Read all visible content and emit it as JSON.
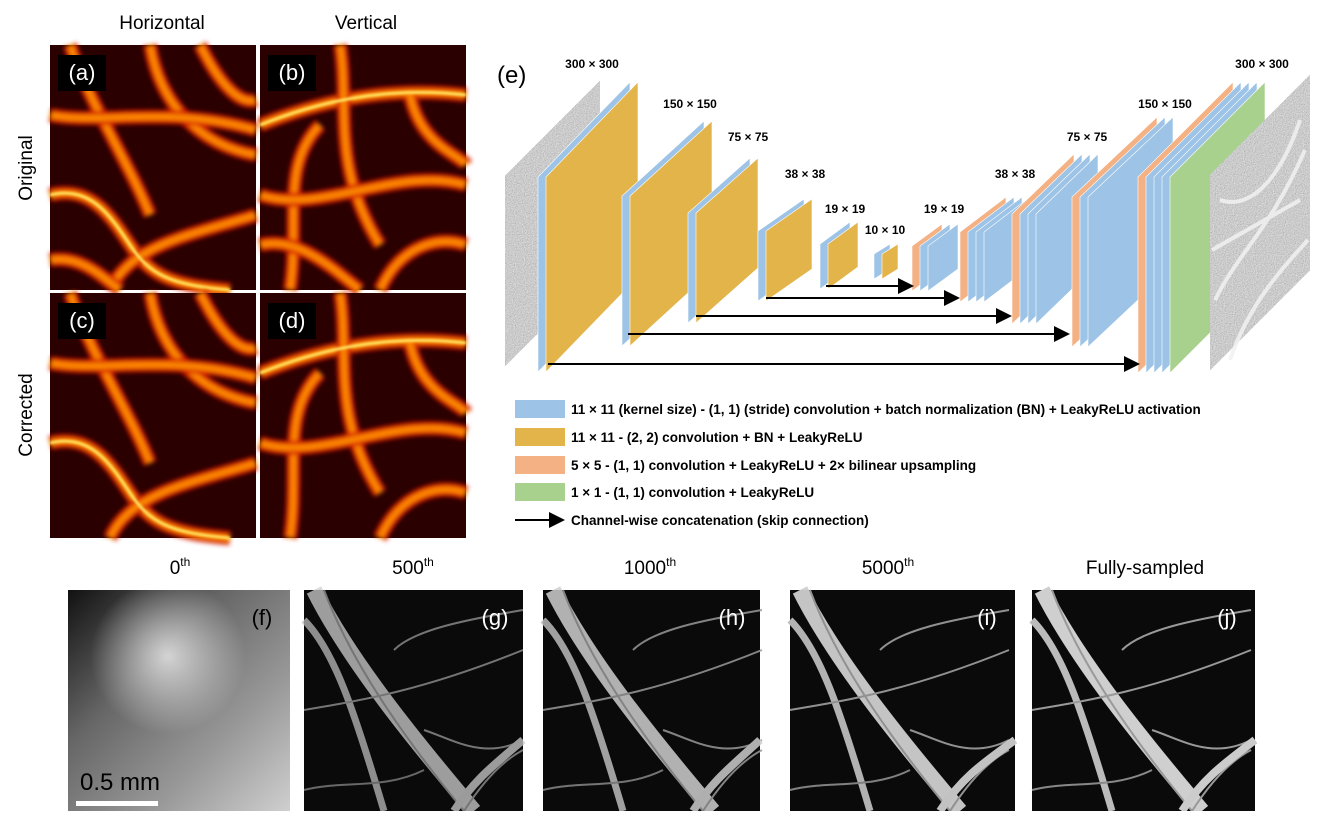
{
  "panels_a_d": {
    "column_headers": [
      "Horizontal",
      "Vertical"
    ],
    "row_headers": [
      "Original",
      "Corrected"
    ],
    "panel_labels": [
      "(a)",
      "(b)",
      "(c)",
      "(d)"
    ]
  },
  "panel_e": {
    "label": "(e)",
    "size_labels": [
      "300 × 300",
      "150 × 150",
      "75 × 75",
      "38 × 38",
      "19 × 19",
      "10 × 10",
      "19 × 19",
      "38 × 38",
      "75 × 75",
      "150 × 150",
      "300 × 300"
    ],
    "legend": [
      "11 × 11 (kernel size) - (1, 1) (stride) convolution + batch normalization (BN) + LeakyReLU activation",
      "11 × 11 - (2, 2) convolution + BN + LeakyReLU",
      "5 × 5 - (1, 1) convolution + LeakyReLU + 2× bilinear upsampling",
      "1 × 1 - (1, 1) convolution + LeakyReLU",
      "Channel-wise concatenation (skip connection)"
    ]
  },
  "panels_f_j": {
    "titles": [
      {
        "main": "0",
        "sup": "th"
      },
      {
        "main": "500",
        "sup": "th"
      },
      {
        "main": "1000",
        "sup": "th"
      },
      {
        "main": "5000",
        "sup": "th"
      },
      {
        "main": "Fully-sampled"
      }
    ],
    "panel_labels": [
      "(f)",
      "(g)",
      "(h)",
      "(i)",
      "(j)"
    ],
    "scale_bar": "0.5 mm"
  }
}
